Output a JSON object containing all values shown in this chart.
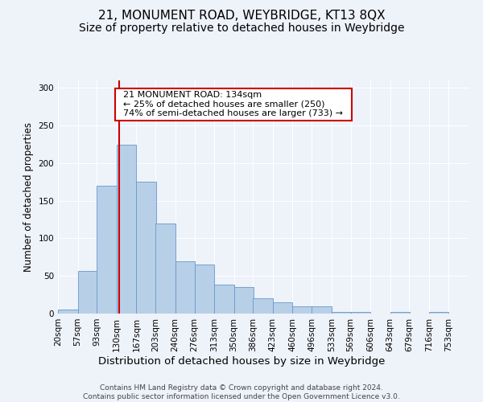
{
  "title": "21, MONUMENT ROAD, WEYBRIDGE, KT13 8QX",
  "subtitle": "Size of property relative to detached houses in Weybridge",
  "xlabel": "Distribution of detached houses by size in Weybridge",
  "ylabel": "Number of detached properties",
  "bin_edges": [
    20,
    57,
    93,
    130,
    167,
    203,
    240,
    276,
    313,
    350,
    386,
    423,
    460,
    496,
    533,
    569,
    606,
    643,
    679,
    716,
    753
  ],
  "bar_heights": [
    5,
    57,
    170,
    225,
    175,
    120,
    70,
    65,
    38,
    35,
    20,
    15,
    10,
    10,
    2,
    2,
    0,
    2,
    0,
    2
  ],
  "bar_color": "#b8cfe8",
  "bar_edge_color": "#6699cc",
  "property_size": 134,
  "red_line_color": "#cc0000",
  "annotation_text": "  21 MONUMENT ROAD: 134sqm  \n  ← 25% of detached houses are smaller (250)  \n  74% of semi-detached houses are larger (733) →  ",
  "annotation_box_color": "white",
  "annotation_box_edge_color": "#cc0000",
  "ylim": [
    0,
    310
  ],
  "background_color": "#eef2f9",
  "grid_color": "white",
  "footer_text": "Contains HM Land Registry data © Crown copyright and database right 2024.\nContains public sector information licensed under the Open Government Licence v3.0.",
  "title_fontsize": 11,
  "subtitle_fontsize": 10,
  "xlabel_fontsize": 9.5,
  "ylabel_fontsize": 8.5,
  "tick_fontsize": 7.5,
  "annotation_fontsize": 8,
  "footer_fontsize": 6.5
}
